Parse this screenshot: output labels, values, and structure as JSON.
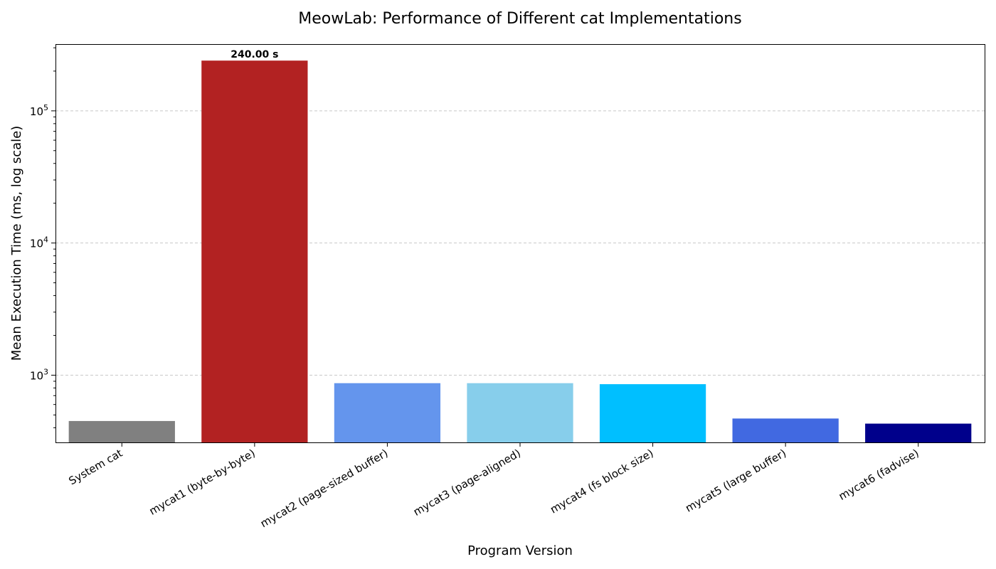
{
  "chart_data": {
    "type": "bar",
    "title": "MeowLab: Performance of Different cat Implementations",
    "xlabel": "Program Version",
    "ylabel": "Mean Execution Time (ms, log scale)",
    "yscale": "log",
    "ylim": [
      310,
      320000
    ],
    "yticks": [
      {
        "value": 1000,
        "base": "10",
        "exp": "3"
      },
      {
        "value": 10000,
        "base": "10",
        "exp": "4"
      },
      {
        "value": 100000,
        "base": "10",
        "exp": "5"
      }
    ],
    "grid": true,
    "categories": [
      "System cat",
      "mycat1 (byte-by-byte)",
      "mycat2 (page-sized buffer)",
      "mycat3 (page-aligned)",
      "mycat4 (fs block size)",
      "mycat5 (large buffer)",
      "mycat6 (fadvise)"
    ],
    "values": [
      450,
      240000,
      870,
      870,
      855,
      470,
      430
    ],
    "colors": [
      "#808080",
      "#b22222",
      "#6495ed",
      "#87ceeb",
      "#00bfff",
      "#4169e1",
      "#00008b"
    ],
    "data_labels": [
      {
        "index": 1,
        "text": "240.00 s"
      }
    ]
  }
}
